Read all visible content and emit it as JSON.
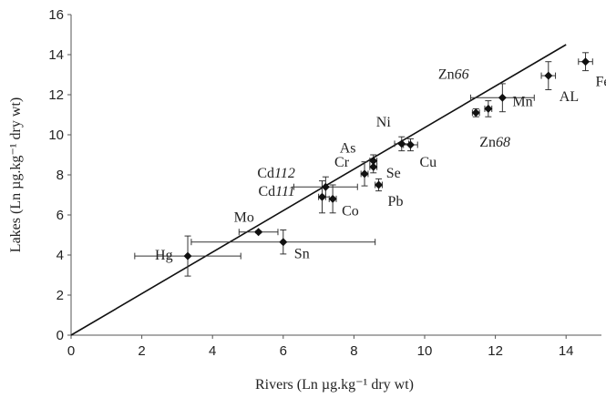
{
  "chart_data": {
    "type": "scatter",
    "xlabel": "Rivers (Ln µg.kg⁻¹ dry wt)",
    "ylabel": "Lakes (Ln µg.kg⁻¹ dry wt)",
    "xlim": [
      0,
      15
    ],
    "ylim": [
      0,
      16
    ],
    "xticks": [
      0,
      2,
      4,
      6,
      8,
      10,
      12,
      14
    ],
    "yticks": [
      0,
      2,
      4,
      6,
      8,
      10,
      12,
      14,
      16
    ],
    "grid": false,
    "line": {
      "x": [
        0,
        14
      ],
      "y": [
        0,
        14.5
      ]
    },
    "points": [
      {
        "label": "Hg",
        "x": 3.3,
        "y": 3.95,
        "xerr": 1.5,
        "yerr": 1.0
      },
      {
        "label": "Sn",
        "x": 6.0,
        "y": 4.65,
        "xerr": 2.6,
        "yerr": 0.6
      },
      {
        "label": "Mo",
        "x": 5.3,
        "y": 5.15,
        "xerr": 0.55,
        "yerr": 0.05
      },
      {
        "label": "Cd111",
        "x": 7.1,
        "y": 6.9,
        "xerr": 0.1,
        "yerr": 0.8
      },
      {
        "label": "Co",
        "x": 7.4,
        "y": 6.8,
        "xerr": 0.1,
        "yerr": 0.7
      },
      {
        "label": "Cd112",
        "x": 7.2,
        "y": 7.4,
        "xerr": 0.9,
        "yerr": 0.5
      },
      {
        "label": "Cr",
        "x": 8.3,
        "y": 8.05,
        "xerr": 0.1,
        "yerr": 0.6
      },
      {
        "label": "Pb",
        "x": 8.7,
        "y": 7.5,
        "xerr": 0.1,
        "yerr": 0.3
      },
      {
        "label": "Se",
        "x": 8.55,
        "y": 8.4,
        "xerr": 0.1,
        "yerr": 0.3
      },
      {
        "label": "As",
        "x": 8.55,
        "y": 8.7,
        "xerr": 0.1,
        "yerr": 0.3
      },
      {
        "label": "Ni",
        "x": 9.35,
        "y": 9.55,
        "xerr": 0.2,
        "yerr": 0.35
      },
      {
        "label": "Cu",
        "x": 9.6,
        "y": 9.5,
        "xerr": 0.2,
        "yerr": 0.3
      },
      {
        "label": "Zn68",
        "x": 11.45,
        "y": 11.1,
        "xerr": 0.1,
        "yerr": 0.2
      },
      {
        "label": "Zn66",
        "x": 11.8,
        "y": 11.3,
        "xerr": 0.1,
        "yerr": 0.4
      },
      {
        "label": "Mn",
        "x": 12.2,
        "y": 11.85,
        "xerr": 0.9,
        "yerr": 0.7
      },
      {
        "label": "AL",
        "x": 13.5,
        "y": 12.95,
        "xerr": 0.2,
        "yerr": 0.7
      },
      {
        "label": "Fe",
        "x": 14.55,
        "y": 13.65,
        "xerr": 0.2,
        "yerr": 0.45
      }
    ],
    "labels": [
      {
        "base": "Hg",
        "num": ""
      },
      {
        "base": "Sn",
        "num": ""
      },
      {
        "base": "Mo",
        "num": ""
      },
      {
        "base": "Cd",
        "num": "111"
      },
      {
        "base": "Co",
        "num": ""
      },
      {
        "base": "Cd",
        "num": "112"
      },
      {
        "base": "Cr",
        "num": ""
      },
      {
        "base": "Pb",
        "num": ""
      },
      {
        "base": "Se",
        "num": ""
      },
      {
        "base": "As",
        "num": ""
      },
      {
        "base": "Ni",
        "num": ""
      },
      {
        "base": "Cu",
        "num": ""
      },
      {
        "base": "Zn",
        "num": "68"
      },
      {
        "base": "Zn",
        "num": "66"
      },
      {
        "base": "Mn",
        "num": ""
      },
      {
        "base": "AL",
        "num": ""
      },
      {
        "base": "Fe",
        "num": ""
      }
    ]
  }
}
